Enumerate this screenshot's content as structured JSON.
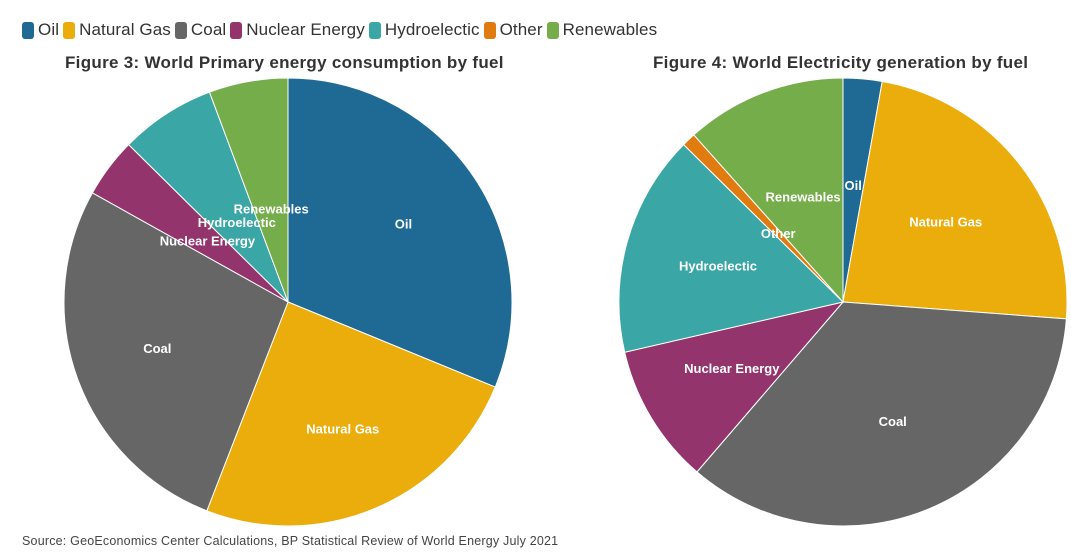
{
  "legend": [
    {
      "label": "Oil",
      "color": "#1f6a94"
    },
    {
      "label": "Natural Gas",
      "color": "#eaad0c"
    },
    {
      "label": "Coal",
      "color": "#666666"
    },
    {
      "label": "Nuclear Energy",
      "color": "#93346d"
    },
    {
      "label": "Hydroelectic",
      "color": "#3aa6a5"
    },
    {
      "label": "Other",
      "color": "#e07b10"
    },
    {
      "label": "Renewables",
      "color": "#74ad4a"
    }
  ],
  "source": "Source: GeoEconomics Center Calculations, BP Statistical Review of World Energy July 2021",
  "chart_data": [
    {
      "type": "pie",
      "title": "Figure 3: World Primary energy consumption by fuel",
      "unit": "percent",
      "slices": [
        {
          "label": "Oil",
          "value": 31.2,
          "color": "#1f6a94"
        },
        {
          "label": "Natural Gas",
          "value": 24.7,
          "color": "#eaad0c"
        },
        {
          "label": "Coal",
          "value": 27.2,
          "color": "#666666"
        },
        {
          "label": "Nuclear Energy",
          "value": 4.3,
          "color": "#93346d"
        },
        {
          "label": "Hydroelectic",
          "value": 6.9,
          "color": "#3aa6a5"
        },
        {
          "label": "Renewables",
          "value": 5.7,
          "color": "#74ad4a"
        }
      ]
    },
    {
      "type": "pie",
      "title": "Figure 4: World Electricity generation by fuel",
      "unit": "percent",
      "slices": [
        {
          "label": "Oil",
          "value": 2.8,
          "color": "#1f6a94"
        },
        {
          "label": "Natural Gas",
          "value": 23.4,
          "color": "#eaad0c"
        },
        {
          "label": "Coal",
          "value": 35.1,
          "color": "#666666"
        },
        {
          "label": "Nuclear Energy",
          "value": 10.1,
          "color": "#93346d"
        },
        {
          "label": "Hydroelectic",
          "value": 16.0,
          "color": "#3aa6a5"
        },
        {
          "label": "Other",
          "value": 1.0,
          "color": "#e07b10"
        },
        {
          "label": "Renewables",
          "value": 11.6,
          "color": "#74ad4a"
        }
      ]
    }
  ]
}
